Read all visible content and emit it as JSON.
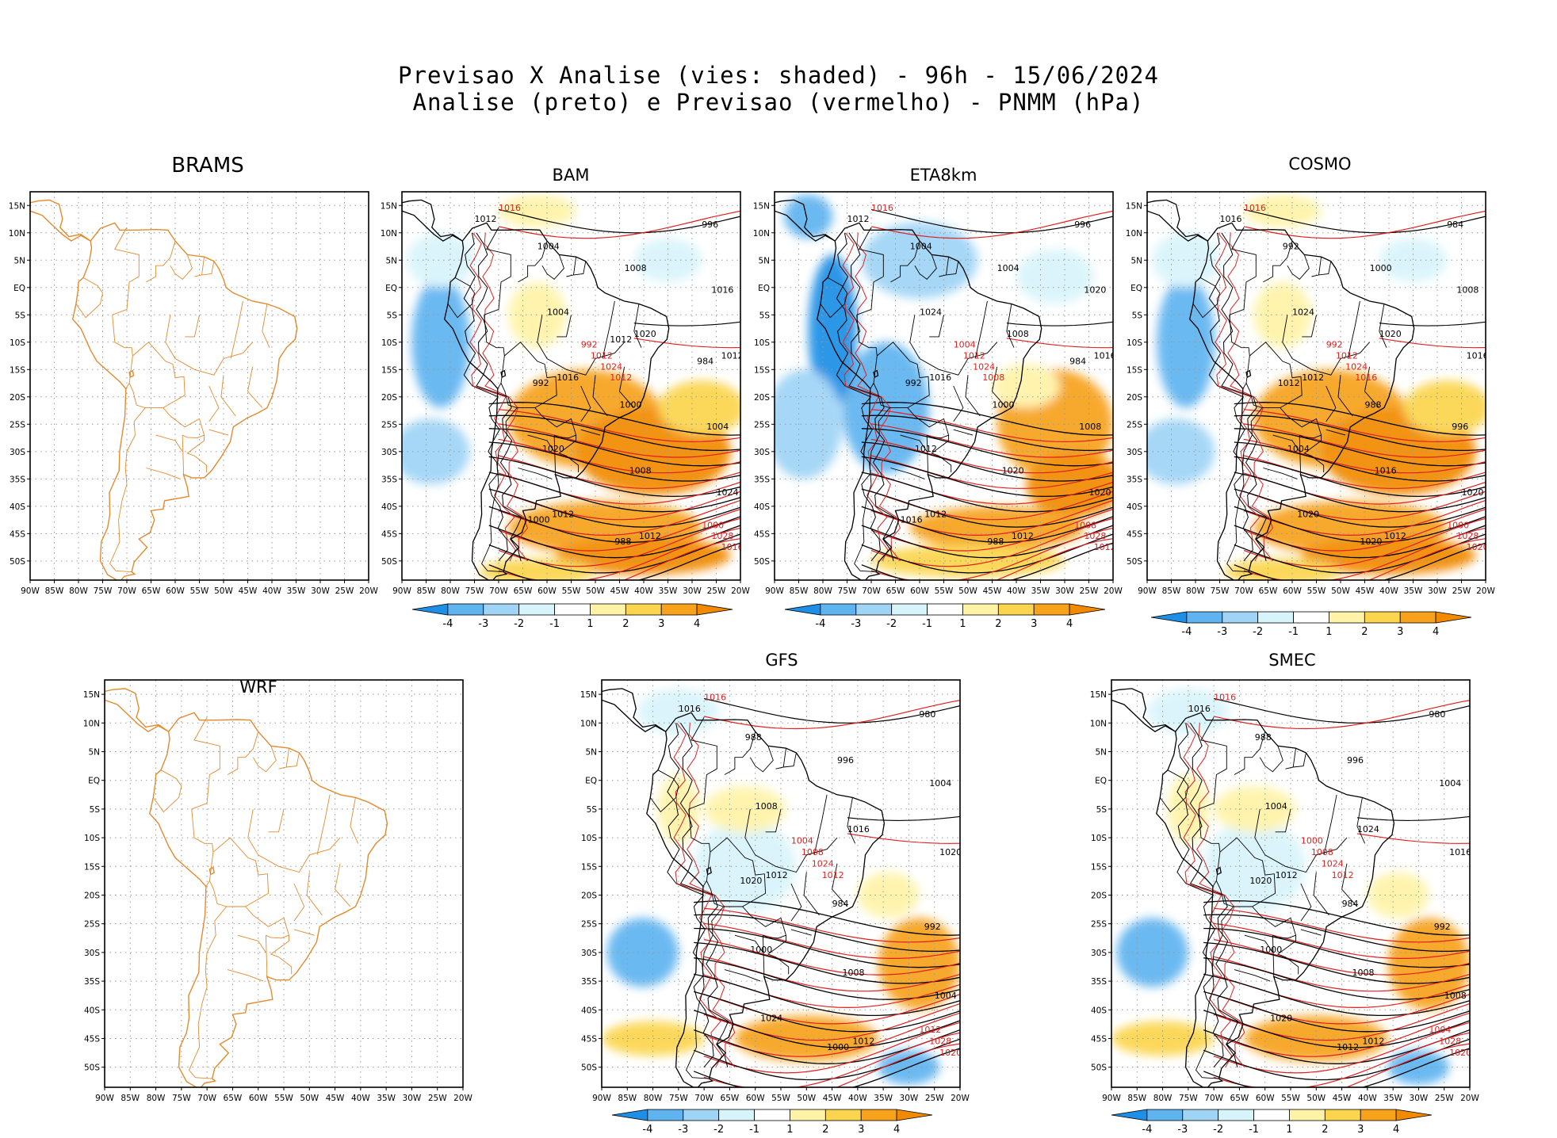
{
  "title": {
    "line1": "Previsao X Analise (vies: shaded) - 96h - 15/06/2024",
    "line2": "Analise (preto) e Previsao (vermelho) - PNMM (hPa)"
  },
  "axes": {
    "lat_labels": [
      "15N",
      "10N",
      "5N",
      "EQ",
      "5S",
      "10S",
      "15S",
      "20S",
      "25S",
      "30S",
      "35S",
      "40S",
      "45S",
      "50S"
    ],
    "lon_labels": [
      "90W",
      "85W",
      "80W",
      "75W",
      "70W",
      "65W",
      "60W",
      "55W",
      "50W",
      "45W",
      "40W",
      "35W",
      "30W",
      "25W",
      "20W"
    ]
  },
  "colorbar": {
    "ticks": [
      "-4",
      "-3",
      "-2",
      "-1",
      "1",
      "2",
      "3",
      "4"
    ],
    "colors": [
      "#1e8fe6",
      "#5fb4f0",
      "#9fd4f6",
      "#d8f4fb",
      "#ffffff",
      "#fff3a8",
      "#fbd54e",
      "#f7a21a",
      "#f28a00"
    ]
  },
  "colors": {
    "coast": "#e38a2e",
    "analysis": "#000000",
    "forecast": "#e01f1f",
    "grid": "#9a9a9a"
  },
  "panels": [
    {
      "name": "BRAMS",
      "has_data": false,
      "has_colorbar": false,
      "black_labels": [],
      "red_labels": []
    },
    {
      "name": "BAM",
      "has_data": true,
      "has_colorbar": true,
      "bias": "warm",
      "black_labels": [
        "1012",
        "1016",
        "1012",
        "1012",
        "1012",
        "1020",
        "1024",
        "1004",
        "1008",
        "1016",
        "1020",
        "1008",
        "1004",
        "1004",
        "1000",
        "996",
        "992",
        "988",
        "984",
        "1000",
        "1012"
      ],
      "red_labels": [
        "1016",
        "1012",
        "1016",
        "1024",
        "1028",
        "1012",
        "1000",
        "992"
      ]
    },
    {
      "name": "ETA8km",
      "has_data": true,
      "has_colorbar": true,
      "bias": "cold",
      "black_labels": [
        "1012",
        "1016",
        "1012",
        "1016",
        "1012",
        "1008",
        "1020",
        "1024",
        "1020",
        "1020",
        "1012",
        "1004",
        "1008",
        "1004",
        "1000",
        "996",
        "992",
        "988",
        "984",
        "1016"
      ],
      "red_labels": [
        "1016",
        "1008",
        "1012",
        "1024",
        "1028",
        "1012",
        "1008",
        "1004"
      ]
    },
    {
      "name": "COSMO",
      "has_data": true,
      "has_colorbar": true,
      "bias": "warm",
      "black_labels": [
        "1016",
        "1012",
        "1012",
        "1016",
        "1020",
        "1020",
        "1020",
        "1024",
        "1016",
        "1008",
        "1004",
        "1000",
        "996",
        "992",
        "988",
        "984",
        "1012",
        "1020"
      ],
      "red_labels": [
        "1016",
        "1016",
        "1020",
        "1024",
        "1028",
        "1012",
        "1000",
        "992"
      ]
    },
    {
      "name": "WRF",
      "has_data": false,
      "has_colorbar": false,
      "black_labels": [],
      "red_labels": []
    },
    {
      "name": "GFS",
      "has_data": true,
      "has_colorbar": true,
      "bias": "mixed",
      "black_labels": [
        "1016",
        "1012",
        "1012",
        "1020",
        "1024",
        "1016",
        "1004",
        "1008",
        "1008",
        "1004",
        "1000",
        "996",
        "992",
        "988",
        "984",
        "980",
        "1020",
        "1000"
      ],
      "red_labels": [
        "1016",
        "1012",
        "1020",
        "1024",
        "1028",
        "1008",
        "1012",
        "1004"
      ]
    },
    {
      "name": "SMEC",
      "has_data": true,
      "has_colorbar": true,
      "bias": "mixed",
      "black_labels": [
        "1016",
        "1012",
        "1012",
        "1016",
        "1020",
        "1024",
        "1008",
        "1004",
        "1008",
        "1004",
        "1000",
        "996",
        "992",
        "988",
        "984",
        "980",
        "1020",
        "1012"
      ],
      "red_labels": [
        "1016",
        "1012",
        "1020",
        "1024",
        "1028",
        "1008",
        "1004",
        "1000"
      ]
    }
  ]
}
